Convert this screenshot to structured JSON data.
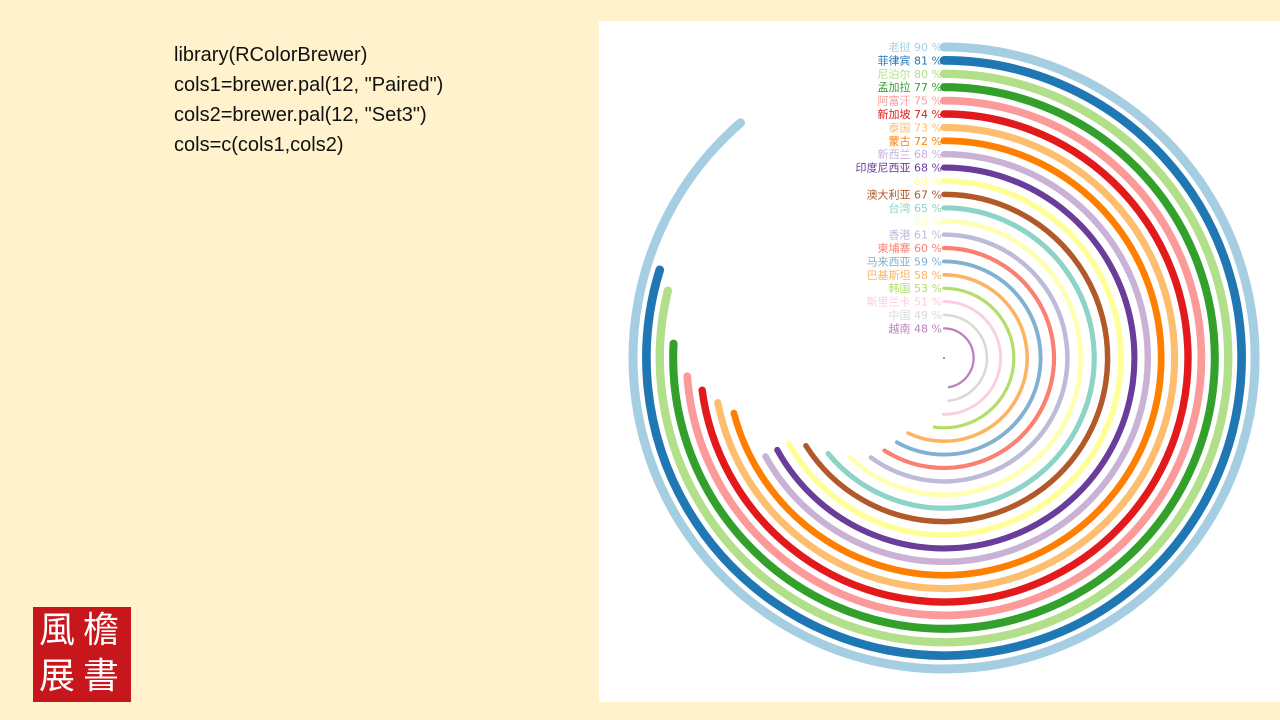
{
  "code_lines": [
    "library(RColorBrewer)",
    "cols1=brewer.pal(12, \"Paired\")",
    "cols2=brewer.pal(12, \"Set3\")",
    "cols=c(cols1,cols2)"
  ],
  "seal": {
    "text": "檐書風展",
    "color": "#c8161d"
  },
  "chart_data": {
    "type": "radial-bar",
    "full_scale": 100,
    "value_suffix": "%",
    "series": [
      {
        "label": "老挝",
        "value": 90,
        "color": "#a6cee3"
      },
      {
        "label": "菲律宾",
        "value": 81,
        "color": "#1f78b4"
      },
      {
        "label": "尼泊尔",
        "value": 80,
        "color": "#b2df8a"
      },
      {
        "label": "孟加拉",
        "value": 77,
        "color": "#33a02c"
      },
      {
        "label": "阿富汗",
        "value": 75,
        "color": "#fb9a99"
      },
      {
        "label": "新加坡",
        "value": 74,
        "color": "#e31a1c"
      },
      {
        "label": "泰国",
        "value": 73,
        "color": "#fdbf6f"
      },
      {
        "label": "蒙古",
        "value": 72,
        "color": "#ff7f00"
      },
      {
        "label": "新西兰",
        "value": 68,
        "color": "#cab2d6"
      },
      {
        "label": "印度尼西亚",
        "value": 68,
        "color": "#6a3d9a"
      },
      {
        "label": "",
        "value": 68,
        "color": "#ffff99"
      },
      {
        "label": "澳大利亚",
        "value": 67,
        "color": "#b15928"
      },
      {
        "label": "台湾",
        "value": 65,
        "color": "#8dd3c7"
      },
      {
        "label": "",
        "value": 63,
        "color": "#ffffb3"
      },
      {
        "label": "香港",
        "value": 61,
        "color": "#bebada"
      },
      {
        "label": "柬埔寨",
        "value": 60,
        "color": "#fb8072"
      },
      {
        "label": "马来西亚",
        "value": 59,
        "color": "#80b1d3"
      },
      {
        "label": "巴基斯坦",
        "value": 58,
        "color": "#fdb462"
      },
      {
        "label": "韩国",
        "value": 53,
        "color": "#b3de69"
      },
      {
        "label": "斯里兰卡",
        "value": 51,
        "color": "#fccde5"
      },
      {
        "label": "中国",
        "value": 49,
        "color": "#d9d9d9"
      },
      {
        "label": "越南",
        "value": 48,
        "color": "#bc80bd"
      }
    ]
  }
}
